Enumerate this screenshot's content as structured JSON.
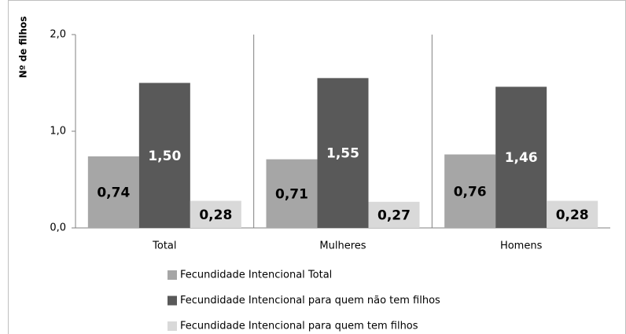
{
  "chart_data": {
    "type": "bar",
    "y_label": "Nº de filhos",
    "categories": [
      "Total",
      "Mulheres",
      "Homens"
    ],
    "series": [
      {
        "name": "Fecundidade Intencional Total",
        "color": "#a6a6a6",
        "values": [
          0.74,
          0.71,
          0.76
        ],
        "value_labels": [
          "0,74",
          "0,71",
          "0,76"
        ]
      },
      {
        "name": "Fecundidade Intencional para quem não tem filhos",
        "color": "#595959",
        "values": [
          1.5,
          1.55,
          1.46
        ],
        "value_labels": [
          "1,50",
          "1,55",
          "1,46"
        ]
      },
      {
        "name": "Fecundidade Intencional para quem tem filhos",
        "color": "#d9d9d9",
        "values": [
          0.28,
          0.27,
          0.28
        ],
        "value_labels": [
          "0,28",
          "0,27",
          "0,28"
        ]
      }
    ],
    "ylim": [
      0,
      2
    ],
    "yticks": [
      {
        "value": 0,
        "label": "0,0"
      },
      {
        "value": 1,
        "label": "1,0"
      },
      {
        "value": 2,
        "label": "2,0"
      }
    ],
    "legend": "bottom"
  }
}
